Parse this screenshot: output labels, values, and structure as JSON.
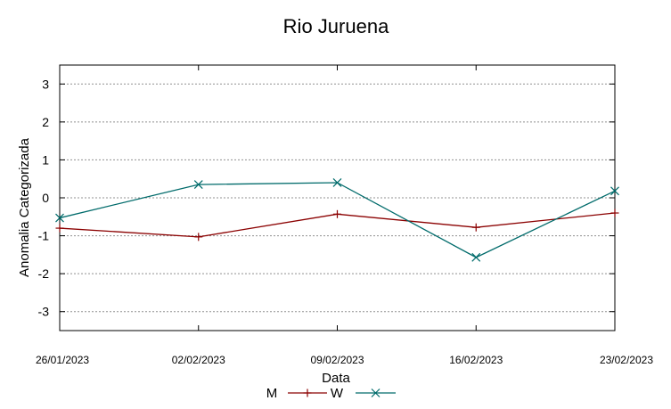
{
  "chart_data": {
    "type": "line",
    "title": "Rio Juruena",
    "xlabel": "Data",
    "ylabel": "Anomalia Categorizada",
    "categories": [
      "26/01/2023",
      "02/02/2023",
      "09/02/2023",
      "16/02/2023",
      "23/02/2023"
    ],
    "ylim": [
      -3.5,
      3.5
    ],
    "yticks": [
      3,
      2,
      1,
      0,
      -1,
      -2,
      -3
    ],
    "grid": true,
    "legend_position": "bottom-center",
    "series": [
      {
        "name": "M",
        "values": [
          -0.8,
          -1.03,
          -0.43,
          -0.78,
          -0.4
        ],
        "color": "#8b0000",
        "marker": "+"
      },
      {
        "name": "W",
        "values": [
          -0.53,
          0.35,
          0.4,
          -1.57,
          0.18
        ],
        "color": "#006b6b",
        "marker": "x"
      }
    ]
  }
}
